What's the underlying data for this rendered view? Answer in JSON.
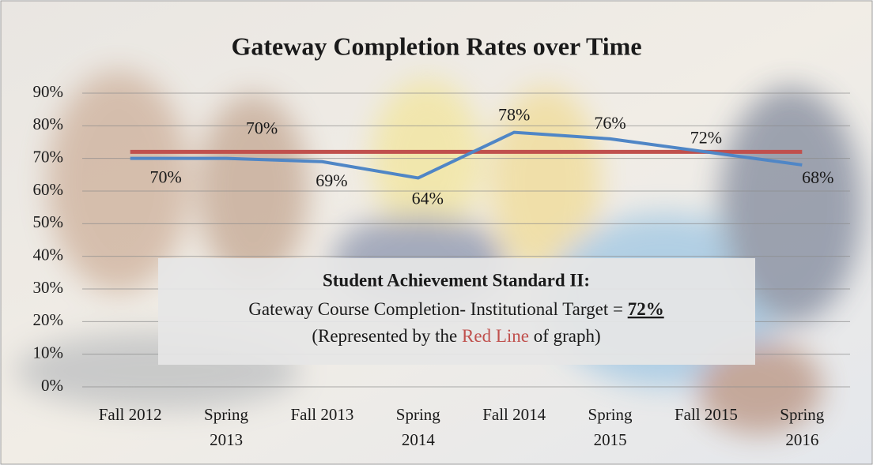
{
  "chart_data": {
    "type": "line",
    "title": "Gateway Completion Rates over Time",
    "categories": [
      "Fall 2012",
      "Spring 2013",
      "Fall 2013",
      "Spring 2014",
      "Fall 2014",
      "Spring 2015",
      "Fall 2015",
      "Spring 2016"
    ],
    "series": [
      {
        "color": "#4f86c6",
        "values": [
          70,
          70,
          69,
          64,
          78,
          76,
          72,
          68
        ],
        "value_labels": [
          "70%",
          "70%",
          "69%",
          "64%",
          "78%",
          "76%",
          "72%",
          "68%"
        ]
      }
    ],
    "target": {
      "value": 72,
      "label": "72%",
      "color": "#c0504d"
    },
    "ylim": [
      0,
      90
    ],
    "yticks": [
      {
        "value": 0,
        "label": "0%"
      },
      {
        "value": 10,
        "label": "10%"
      },
      {
        "value": 20,
        "label": "20%"
      },
      {
        "value": 30,
        "label": "30%"
      },
      {
        "value": 40,
        "label": "40%"
      },
      {
        "value": 50,
        "label": "50%"
      },
      {
        "value": 60,
        "label": "60%"
      },
      {
        "value": 70,
        "label": "70%"
      },
      {
        "value": 80,
        "label": "80%"
      },
      {
        "value": 90,
        "label": "90%"
      }
    ],
    "grid": true,
    "annotation": {
      "heading": "Student Achievement Standard II:",
      "line1": "Gateway Course Completion- Institutional Target = ",
      "line2_start": "(Represented by the ",
      "line2_red": "Red Line",
      "line2_end": " of graph)"
    }
  }
}
